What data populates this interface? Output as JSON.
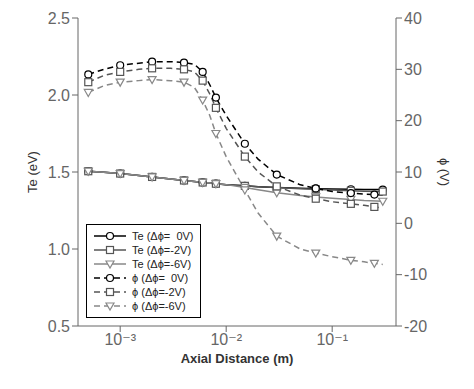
{
  "chart_data": {
    "type": "line",
    "xlabel": "Axial Distance (m)",
    "ylabel": "Te (eV)",
    "y2label": "ϕ (V)",
    "log": "x",
    "xlim": [
      0.0004,
      0.4
    ],
    "xticks": [
      {
        "value": 0.001,
        "label": "10⁻³"
      },
      {
        "value": 0.01,
        "label": "10⁻²"
      },
      {
        "value": 0.1,
        "label": "10⁻¹"
      }
    ],
    "ylim": [
      0.5,
      2.5
    ],
    "yticks": [
      0.5,
      {
        "value": 1,
        "label": "1.0"
      },
      1.5,
      {
        "value": 2,
        "label": "2.0"
      },
      2.5
    ],
    "y2lim": [
      -20,
      40
    ],
    "y2ticks": [
      -20,
      -10,
      0,
      10,
      20,
      30,
      40
    ],
    "grid": false,
    "legend": "lower left",
    "series": [
      {
        "name": "Te (Δϕ=  0V)",
        "color": "#000000",
        "marker": "circle",
        "line_style": "solid",
        "x": [
          0.0005,
          0.0007,
          0.001,
          0.0015,
          0.002,
          0.003,
          0.004,
          0.005,
          0.006,
          0.007,
          0.008,
          0.01,
          0.015,
          0.02,
          0.03,
          0.05,
          0.07,
          0.1,
          0.15,
          0.2,
          0.3
        ],
        "values": [
          1.505,
          1.498,
          1.49,
          1.478,
          1.468,
          1.455,
          1.445,
          1.438,
          1.432,
          1.428,
          1.424,
          1.418,
          1.41,
          1.405,
          1.4,
          1.395,
          1.392,
          1.39,
          1.388,
          1.387,
          1.386
        ]
      },
      {
        "name": "Te (Δϕ=-2V)",
        "color": "#555555",
        "marker": "square",
        "line_style": "solid",
        "x": [
          0.0005,
          0.0007,
          0.001,
          0.0015,
          0.002,
          0.003,
          0.004,
          0.005,
          0.006,
          0.007,
          0.008,
          0.01,
          0.015,
          0.02,
          0.03,
          0.05,
          0.07,
          0.1,
          0.15,
          0.2,
          0.3
        ],
        "values": [
          1.505,
          1.498,
          1.49,
          1.478,
          1.468,
          1.455,
          1.445,
          1.438,
          1.432,
          1.428,
          1.424,
          1.418,
          1.41,
          1.405,
          1.4,
          1.392,
          1.388,
          1.383,
          1.378,
          1.375,
          1.373
        ]
      },
      {
        "name": "Te (Δϕ=-6V)",
        "color": "#888888",
        "marker": "triangle-down",
        "line_style": "solid",
        "x": [
          0.0005,
          0.0007,
          0.001,
          0.0015,
          0.002,
          0.003,
          0.004,
          0.005,
          0.006,
          0.007,
          0.008,
          0.01,
          0.015,
          0.02,
          0.03,
          0.05,
          0.07,
          0.1,
          0.15,
          0.2,
          0.3
        ],
        "values": [
          1.505,
          1.498,
          1.49,
          1.478,
          1.468,
          1.455,
          1.445,
          1.438,
          1.432,
          1.428,
          1.424,
          1.418,
          1.4,
          1.385,
          1.365,
          1.348,
          1.338,
          1.33,
          1.322,
          1.315,
          1.31
        ]
      },
      {
        "name": "ϕ (Δϕ=  0V)",
        "color": "#000000",
        "marker": "circle",
        "line_style": "dashed",
        "axis": "y2",
        "x": [
          0.0005,
          0.0007,
          0.001,
          0.0015,
          0.002,
          0.003,
          0.004,
          0.005,
          0.006,
          0.007,
          0.008,
          0.01,
          0.015,
          0.02,
          0.03,
          0.05,
          0.07,
          0.1,
          0.15,
          0.2,
          0.25,
          0.3
        ],
        "values": [
          29.0,
          30.0,
          30.8,
          31.2,
          31.5,
          31.5,
          31.3,
          31.0,
          29.5,
          27.0,
          24.5,
          21.0,
          15.5,
          12.5,
          9.5,
          7.5,
          6.8,
          6.2,
          5.9,
          5.7,
          5.6,
          5.5
        ]
      },
      {
        "name": "ϕ (Δϕ=-2V)",
        "color": "#555555",
        "marker": "square",
        "line_style": "dashed",
        "axis": "y2",
        "x": [
          0.0005,
          0.0007,
          0.001,
          0.0015,
          0.002,
          0.003,
          0.004,
          0.005,
          0.006,
          0.007,
          0.008,
          0.01,
          0.015,
          0.02,
          0.03,
          0.05,
          0.07,
          0.1,
          0.15,
          0.2,
          0.25,
          0.3
        ],
        "values": [
          27.5,
          28.8,
          29.5,
          30.0,
          30.2,
          30.2,
          30.0,
          29.5,
          27.8,
          25.2,
          22.5,
          18.5,
          13.0,
          10.0,
          7.2,
          5.5,
          4.8,
          4.2,
          3.8,
          3.5,
          3.2,
          3.0
        ]
      },
      {
        "name": "ϕ (Δϕ=-6V)",
        "color": "#888888",
        "marker": "triangle-down",
        "line_style": "dashed",
        "axis": "y2",
        "x": [
          0.0005,
          0.0007,
          0.001,
          0.0015,
          0.002,
          0.003,
          0.004,
          0.005,
          0.006,
          0.007,
          0.008,
          0.01,
          0.015,
          0.02,
          0.03,
          0.05,
          0.07,
          0.1,
          0.15,
          0.2,
          0.25,
          0.3
        ],
        "values": [
          25.5,
          26.8,
          27.5,
          27.8,
          28.0,
          27.8,
          27.5,
          26.5,
          24.0,
          21.0,
          17.5,
          13.0,
          6.5,
          2.0,
          -2.5,
          -5.0,
          -5.8,
          -6.5,
          -7.2,
          -7.5,
          -7.8,
          -8.0
        ]
      }
    ]
  }
}
